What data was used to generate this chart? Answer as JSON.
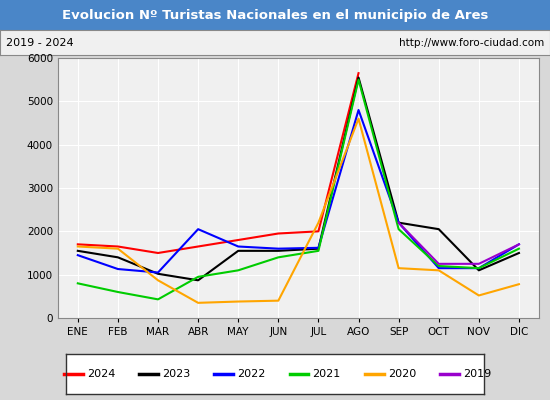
{
  "title": "Evolucion Nº Turistas Nacionales en el municipio de Ares",
  "subtitle_left": "2019 - 2024",
  "subtitle_right": "http://www.foro-ciudad.com",
  "months": [
    "ENE",
    "FEB",
    "MAR",
    "ABR",
    "MAY",
    "JUN",
    "JUL",
    "AGO",
    "SEP",
    "OCT",
    "NOV",
    "DIC"
  ],
  "series": {
    "2024": [
      1700,
      1650,
      1500,
      1650,
      1800,
      1950,
      2000,
      5650,
      null,
      null,
      null,
      null
    ],
    "2023": [
      1550,
      1400,
      1020,
      870,
      1550,
      1550,
      1600,
      5550,
      2200,
      2050,
      1100,
      1500
    ],
    "2022": [
      1450,
      1130,
      1050,
      2050,
      1650,
      1600,
      1620,
      4800,
      2200,
      1150,
      1150,
      1700
    ],
    "2021": [
      800,
      600,
      430,
      950,
      1100,
      1400,
      1550,
      5500,
      2050,
      1200,
      1150,
      1600
    ],
    "2020": [
      1650,
      1600,
      870,
      350,
      380,
      400,
      2200,
      4600,
      1150,
      1100,
      520,
      780
    ],
    "2019": [
      null,
      null,
      null,
      null,
      null,
      null,
      null,
      null,
      2200,
      1250,
      1250,
      1700
    ]
  },
  "colors": {
    "2024": "#ff0000",
    "2023": "#000000",
    "2022": "#0000ff",
    "2021": "#00cc00",
    "2020": "#ffa500",
    "2019": "#9900cc"
  },
  "ylim": [
    0,
    6000
  ],
  "yticks": [
    0,
    1000,
    2000,
    3000,
    4000,
    5000,
    6000
  ],
  "title_bg": "#4a86c8",
  "title_color": "#ffffff",
  "outer_bg": "#d8d8d8",
  "inner_bg": "#f0f0f0",
  "grid_color": "#ffffff",
  "border_color": "#888888"
}
